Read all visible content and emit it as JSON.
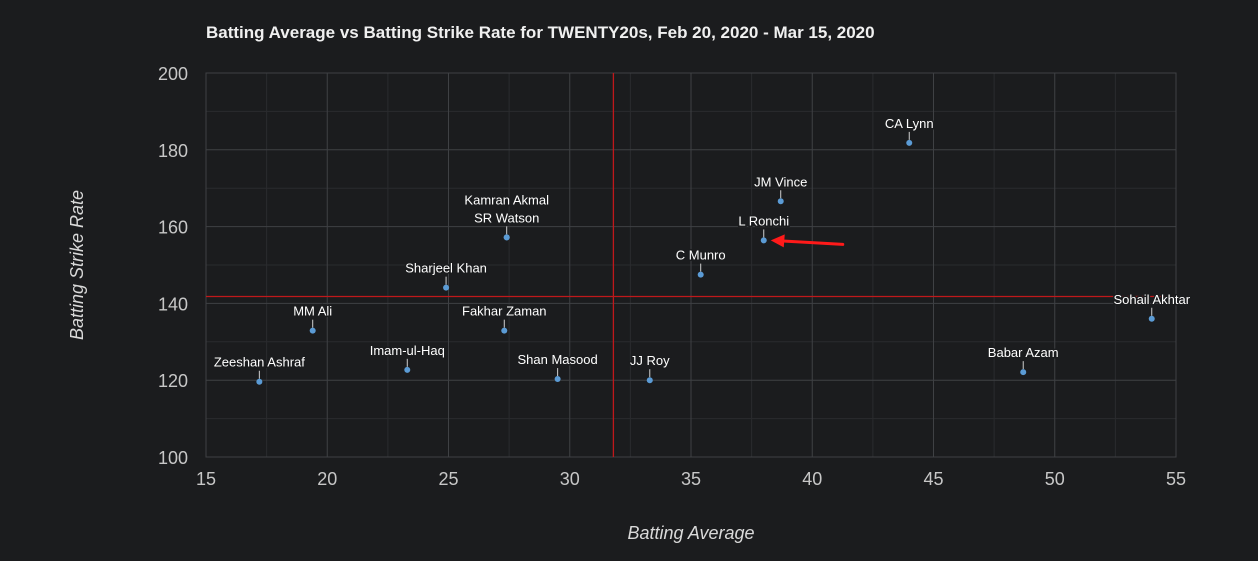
{
  "chart_data": {
    "type": "scatter",
    "title": "Batting Average vs Batting Strike Rate for TWENTY20s, Feb 20, 2020 - Mar 15, 2020",
    "xlabel": "Batting Average",
    "ylabel": "Batting Strike Rate",
    "xlim": [
      15,
      55
    ],
    "ylim": [
      100,
      200
    ],
    "xticks": [
      15,
      20,
      25,
      30,
      35,
      40,
      45,
      50,
      55
    ],
    "yticks": [
      100,
      120,
      140,
      160,
      180,
      200
    ],
    "grid": true,
    "reference_lines": {
      "x": 31.8,
      "y": 141.8
    },
    "highlighted_player": "L Ronchi",
    "points": [
      {
        "label": "Zeeshan Ashraf",
        "x": 17.2,
        "y": 119.6
      },
      {
        "label": "MM Ali",
        "x": 19.4,
        "y": 132.9
      },
      {
        "label": "Imam-ul-Haq",
        "x": 23.3,
        "y": 122.7
      },
      {
        "label": "Sharjeel Khan",
        "x": 24.9,
        "y": 144.1
      },
      {
        "label": "Kamran Akmal",
        "x": 27.4,
        "y": 157.2,
        "stack": 2
      },
      {
        "label": "SR Watson",
        "x": 27.4,
        "y": 157.2,
        "stack": 1
      },
      {
        "label": "Fakhar Zaman",
        "x": 27.3,
        "y": 132.9
      },
      {
        "label": "Shan Masood",
        "x": 29.5,
        "y": 120.3
      },
      {
        "label": "JJ Roy",
        "x": 33.3,
        "y": 120.0
      },
      {
        "label": "C Munro",
        "x": 35.4,
        "y": 147.5
      },
      {
        "label": "L Ronchi",
        "x": 38.0,
        "y": 156.4
      },
      {
        "label": "JM Vince",
        "x": 38.7,
        "y": 166.6
      },
      {
        "label": "CA Lynn",
        "x": 44.0,
        "y": 181.8
      },
      {
        "label": "Babar Azam",
        "x": 48.7,
        "y": 122.1
      },
      {
        "label": "Sohail Akhtar",
        "x": 54.0,
        "y": 136.0
      }
    ]
  },
  "colors": {
    "background": "#1b1c1e",
    "grid_major": "#3f4144",
    "grid_minor": "#2a2b2e",
    "point": "#5b9bd5",
    "reference_line": "#c0181b",
    "arrow": "#ff1a1a",
    "text": "#f0f0f0",
    "tick_text": "#c7c7c7"
  }
}
